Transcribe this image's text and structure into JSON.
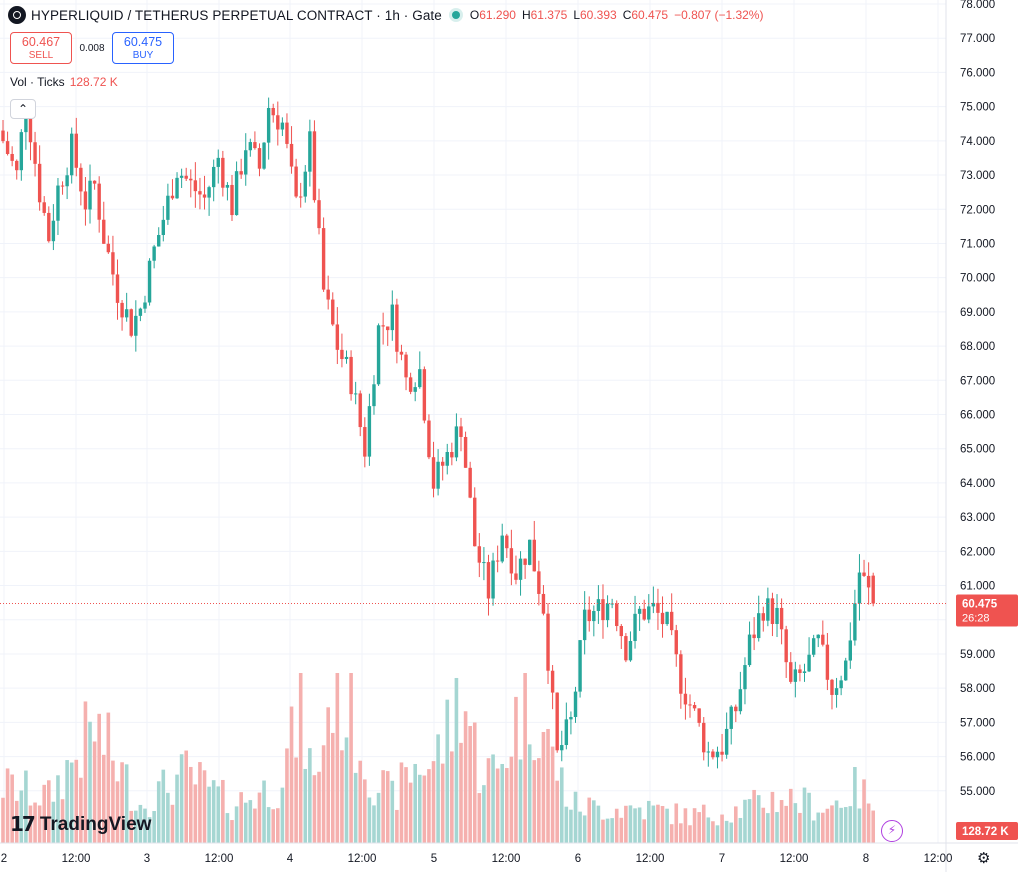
{
  "header": {
    "title": "HYPERLIQUID / TETHERUS PERPETUAL CONTRACT · 1h · Gate",
    "ohlc": {
      "o_label": "O",
      "o": "61.290",
      "h_label": "H",
      "h": "61.375",
      "l_label": "L",
      "l": "60.393",
      "c_label": "C",
      "c": "60.475",
      "change": "−0.807 (−1.32%)"
    }
  },
  "trade": {
    "sell_price": "60.467",
    "sell_label": "SELL",
    "spread": "0.008",
    "buy_price": "60.475",
    "buy_label": "BUY"
  },
  "volume_legend": {
    "label": "Vol · Ticks",
    "value": "128.72 K"
  },
  "collapse_icon": "chevron-up-icon",
  "logo": {
    "text": "TradingView",
    "mark": "tradingview-logo-icon"
  },
  "colors": {
    "up": "#26a69a",
    "down": "#ef5350",
    "up_volume": "#a5d6d2",
    "down_volume": "#f5b0ae",
    "grid": "#f0f3fa",
    "accent": "#2962ff"
  },
  "chart_data": {
    "type": "candlestick",
    "title": "HYPERLIQUID / TETHERUS PERPETUAL CONTRACT · 1h · Gate",
    "ylim": [
      54.0,
      78.0
    ],
    "y_ticks": [
      "55.000",
      "56.000",
      "57.000",
      "58.000",
      "59.000",
      "60.000",
      "61.000",
      "62.000",
      "63.000",
      "64.000",
      "65.000",
      "66.000",
      "67.000",
      "68.000",
      "69.000",
      "70.000",
      "71.000",
      "72.000",
      "73.000",
      "74.000",
      "75.000",
      "76.000",
      "77.000",
      "78.000"
    ],
    "x_ticks": [
      "2",
      "12:00",
      "3",
      "12:00",
      "4",
      "12:00",
      "5",
      "12:00",
      "6",
      "12:00",
      "7",
      "12:00",
      "8",
      "12:00"
    ],
    "last_price": "60.475",
    "countdown": "26:28",
    "volume_last": "128.72 K",
    "price_anchors": [
      [
        0,
        74.0
      ],
      [
        3,
        73.0
      ],
      [
        5,
        75.2
      ],
      [
        8,
        72.5
      ],
      [
        10,
        71.2
      ],
      [
        12,
        72.6
      ],
      [
        15,
        73.8
      ],
      [
        18,
        72.2
      ],
      [
        20,
        72.7
      ],
      [
        22,
        71.2
      ],
      [
        25,
        69.6
      ],
      [
        28,
        68.6
      ],
      [
        30,
        69.1
      ],
      [
        33,
        70.8
      ],
      [
        36,
        72.2
      ],
      [
        38,
        73.2
      ],
      [
        41,
        72.7
      ],
      [
        44,
        72.3
      ],
      [
        47,
        73.5
      ],
      [
        50,
        72.1
      ],
      [
        53,
        73.9
      ],
      [
        56,
        73.2
      ],
      [
        58,
        75.0
      ],
      [
        61,
        74.5
      ],
      [
        64,
        72.1
      ],
      [
        67,
        73.9
      ],
      [
        70,
        69.6
      ],
      [
        73,
        68.0
      ],
      [
        76,
        67.0
      ],
      [
        79,
        65.0
      ],
      [
        82,
        68.5
      ],
      [
        85,
        68.9
      ],
      [
        88,
        67.0
      ],
      [
        91,
        67.3
      ],
      [
        94,
        64.0
      ],
      [
        97,
        64.8
      ],
      [
        100,
        65.7
      ],
      [
        103,
        62.2
      ],
      [
        106,
        60.8
      ],
      [
        109,
        62.6
      ],
      [
        112,
        61.4
      ],
      [
        115,
        62.2
      ],
      [
        118,
        60.4
      ],
      [
        121,
        56.0
      ],
      [
        124,
        57.0
      ],
      [
        127,
        60.0
      ],
      [
        130,
        60.3
      ],
      [
        133,
        60.6
      ],
      [
        136,
        59.2
      ],
      [
        139,
        60.2
      ],
      [
        142,
        60.3
      ],
      [
        145,
        59.8
      ],
      [
        148,
        58.2
      ],
      [
        151,
        57.2
      ],
      [
        154,
        56.1
      ],
      [
        157,
        56.3
      ],
      [
        160,
        57.4
      ],
      [
        163,
        59.3
      ],
      [
        166,
        60.4
      ],
      [
        169,
        60.1
      ],
      [
        172,
        58.0
      ],
      [
        175,
        58.5
      ],
      [
        178,
        59.3
      ],
      [
        181,
        58.0
      ],
      [
        184,
        58.7
      ],
      [
        187,
        61.4
      ],
      [
        190,
        60.475
      ]
    ],
    "volume_anchors": [
      [
        0,
        1500
      ],
      [
        10,
        1200
      ],
      [
        20,
        3000
      ],
      [
        30,
        1000
      ],
      [
        40,
        1800
      ],
      [
        50,
        1000
      ],
      [
        60,
        1500
      ],
      [
        65,
        3300
      ],
      [
        68,
        1500
      ],
      [
        72,
        4100
      ],
      [
        76,
        3300
      ],
      [
        80,
        1800
      ],
      [
        85,
        1200
      ],
      [
        90,
        2000
      ],
      [
        94,
        2100
      ],
      [
        98,
        3100
      ],
      [
        100,
        4100
      ],
      [
        104,
        2000
      ],
      [
        108,
        1800
      ],
      [
        112,
        3200
      ],
      [
        116,
        3600
      ],
      [
        120,
        2200
      ],
      [
        124,
        1000
      ],
      [
        130,
        900
      ],
      [
        140,
        900
      ],
      [
        150,
        700
      ],
      [
        160,
        850
      ],
      [
        170,
        1200
      ],
      [
        180,
        900
      ],
      [
        186,
        1400
      ],
      [
        190,
        1100
      ]
    ],
    "volume_max": 4200
  }
}
